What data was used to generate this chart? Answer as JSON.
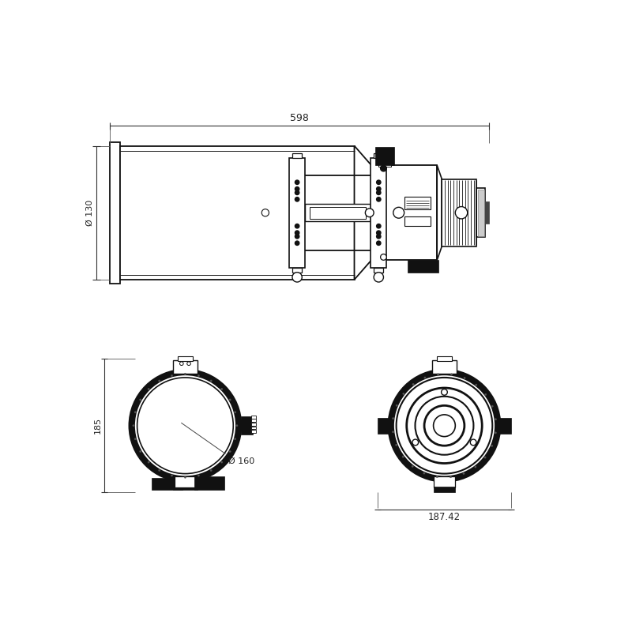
{
  "bg_color": "#ffffff",
  "line_color": "#111111",
  "dim_color": "#222222",
  "fig_width": 8.0,
  "fig_height": 8.0,
  "dpi": 100,
  "dim_598_label": "598",
  "dim_130_label": "Ø 130",
  "dim_185_label": "185",
  "dim_160_label": "Ø 160",
  "dim_187_label": "187.42"
}
